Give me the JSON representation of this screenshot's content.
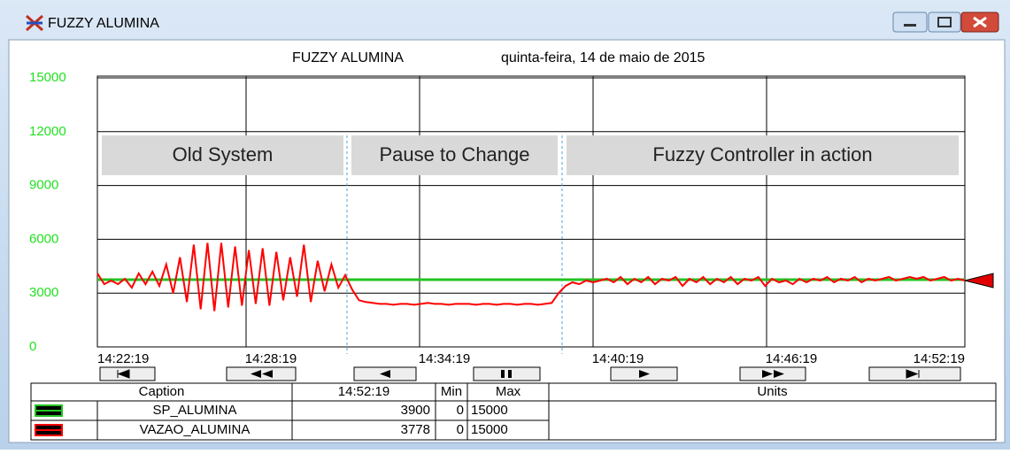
{
  "window": {
    "title": "FUZZY ALUMINA"
  },
  "chart_data": {
    "type": "line",
    "title": "FUZZY ALUMINA",
    "subtitle": "quinta-feira, 14 de maio de 2015",
    "xtick_labels": [
      "14:22:19",
      "14:28:19",
      "14:34:19",
      "14:40:19",
      "14:46:19",
      "14:52:19"
    ],
    "ylim": [
      0,
      15000
    ],
    "yticks": [
      0,
      3000,
      6000,
      9000,
      12000,
      15000
    ],
    "grid": true,
    "annotations": [
      "Old System",
      "Pause to Change",
      "Fuzzy Controller in action"
    ],
    "series": [
      {
        "name": "SP_ALUMINA",
        "color": "#22c422",
        "values": [
          3750,
          3750
        ]
      },
      {
        "name": "VAZAO_ALUMINA",
        "color": "#ff0000",
        "values": [
          4100,
          3500,
          3700,
          3500,
          3800,
          3300,
          4100,
          3500,
          4200,
          3400,
          4600,
          3000,
          5000,
          2500,
          5700,
          2100,
          5800,
          2000,
          5800,
          2200,
          5600,
          2300,
          5400,
          2400,
          5500,
          2300,
          5300,
          2600,
          5000,
          2800,
          5700,
          2500,
          4800,
          3100,
          4600,
          3300,
          4000,
          3200,
          2600,
          2500,
          2450,
          2400,
          2400,
          2350,
          2400,
          2400,
          2350,
          2400,
          2450,
          2400,
          2400,
          2350,
          2400,
          2400,
          2400,
          2350,
          2400,
          2400,
          2350,
          2400,
          2400,
          2350,
          2400,
          2400,
          2350,
          2400,
          2450,
          3000,
          3400,
          3600,
          3500,
          3700,
          3600,
          3700,
          3800,
          3600,
          3900,
          3500,
          3800,
          3600,
          3900,
          3500,
          3800,
          3700,
          3900,
          3400,
          3800,
          3600,
          3900,
          3500,
          3800,
          3600,
          3900,
          3500,
          3800,
          3700,
          3900,
          3400,
          3800,
          3600,
          3700,
          3500,
          3800,
          3600,
          3800,
          3700,
          3900,
          3600,
          3800,
          3700,
          3900,
          3600,
          3800,
          3700,
          3800,
          3900,
          3700,
          3800,
          3900,
          3800,
          3900,
          3700,
          3800,
          3900,
          3700,
          3800,
          3700
        ]
      }
    ]
  },
  "table": {
    "headers": [
      "Caption",
      "14:52:19",
      "Min",
      "Max",
      "Units"
    ],
    "rows": [
      {
        "value": 3900,
        "min": 0,
        "max": 15000
      },
      {
        "value": 3778,
        "min": 0,
        "max": 15000
      }
    ]
  }
}
